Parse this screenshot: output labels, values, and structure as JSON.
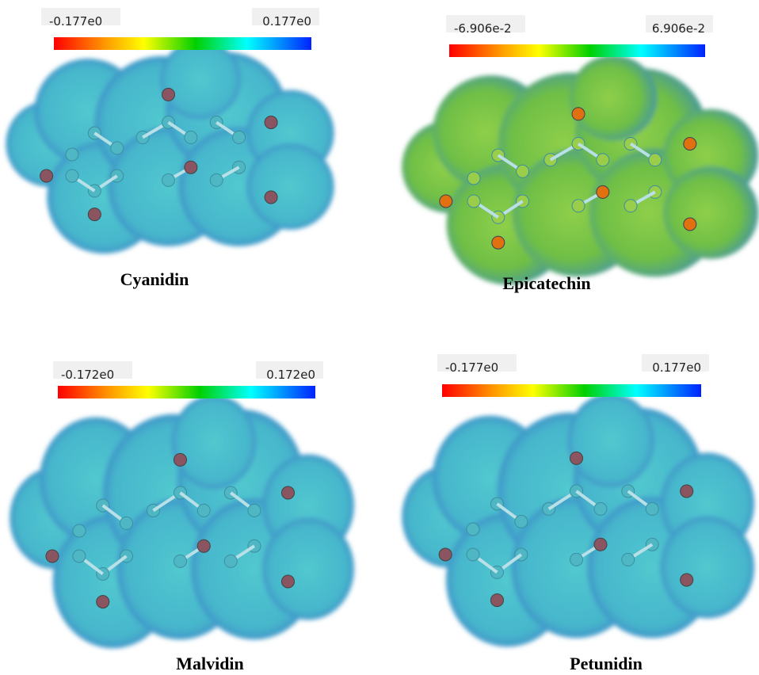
{
  "panels": [
    {
      "label": "Cyanidin",
      "scale_min": "-0.177e0",
      "scale_max": "0.177e0"
    },
    {
      "label": "Epicatechin",
      "scale_min": "-6.906e-2",
      "scale_max": "6.906e-2"
    },
    {
      "label": "Malvidin",
      "scale_min": "-0.172e0",
      "scale_max": "0.172e0"
    },
    {
      "label": "Petunidin",
      "scale_min": "-0.177e0",
      "scale_max": "0.177e0"
    }
  ]
}
